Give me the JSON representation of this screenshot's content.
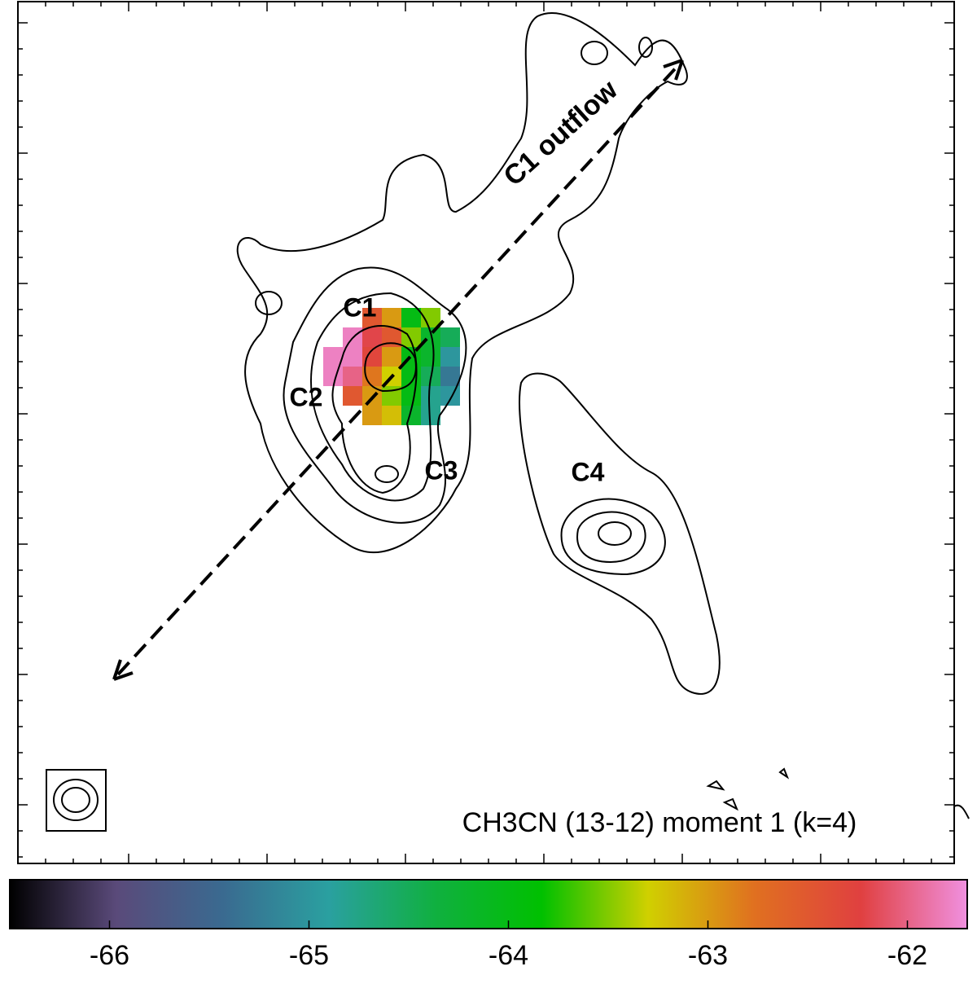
{
  "chart_data": {
    "type": "image",
    "annotations": [
      "C1 outflow",
      "C1",
      "C2",
      "C3",
      "C4"
    ],
    "label": "CH3CN (13-12) moment 1 (k=4)",
    "values": [
      [
        null,
        null,
        -62.5,
        -63,
        -64,
        -63.5,
        null
      ],
      [
        null,
        -61.8,
        -62.2,
        -62.5,
        -63.5,
        -64.2,
        -64.5
      ],
      [
        -61.8,
        -61.8,
        -62.3,
        -63,
        -64,
        -64.2,
        -65
      ],
      [
        -61.8,
        -62,
        -62.8,
        -63.3,
        -64,
        -64.5,
        -65.3
      ],
      [
        null,
        -62.5,
        -63,
        -63.5,
        -64,
        -64.8,
        -65
      ],
      [
        null,
        null,
        -63,
        -63.2,
        -64.2,
        -64.8,
        null
      ]
    ],
    "clim": [
      -66.5,
      -61.7
    ],
    "cticks": [
      -66,
      -65,
      -64,
      -63,
      -62
    ],
    "colormap": [
      "#000000",
      "#5a4a7a",
      "#3a6a90",
      "#2aa0a0",
      "#10b040",
      "#00c000",
      "#d0d000",
      "#e07020",
      "#e04040",
      "#f090e0"
    ]
  }
}
